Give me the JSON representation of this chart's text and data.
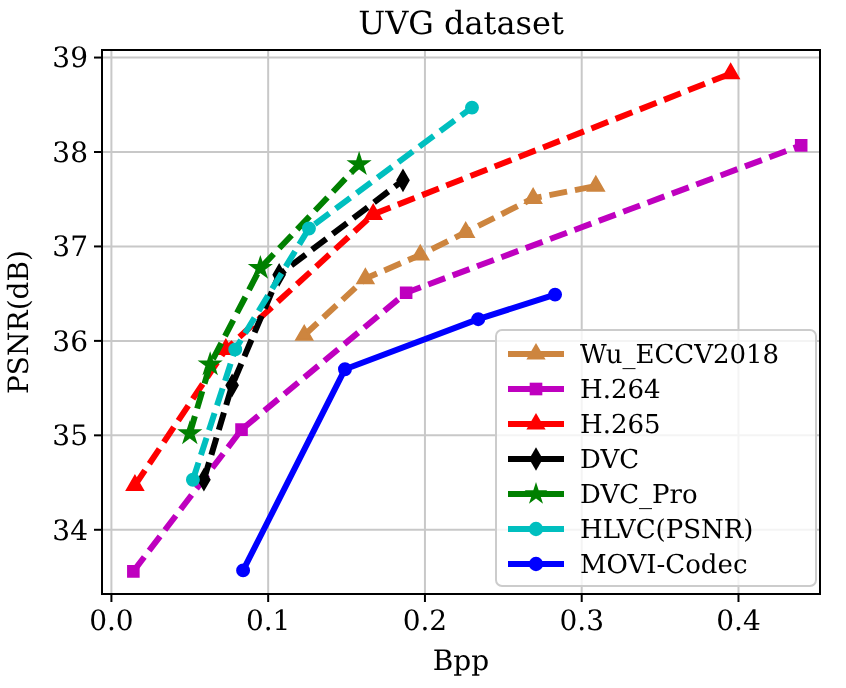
{
  "chart_data": {
    "type": "line",
    "title": "UVG dataset",
    "xlabel": "Bpp",
    "ylabel": "PSNR(dB)",
    "xlim": [
      -0.006,
      0.452
    ],
    "ylim": [
      33.32,
      39.08
    ],
    "xticks": [
      {
        "value": 0,
        "label": "0.0"
      },
      {
        "value": 0.1,
        "label": "0.1"
      },
      {
        "value": 0.2,
        "label": "0.2"
      },
      {
        "value": 0.3,
        "label": "0.3"
      },
      {
        "value": 0.4,
        "label": "0.4"
      }
    ],
    "yticks": [
      34,
      35,
      36,
      37,
      38,
      39
    ],
    "grid": true,
    "legend": "bottom right",
    "series": [
      {
        "name": "Wu_ECCV2018",
        "color": "#cd853f",
        "marker": "triangle",
        "line_style": "dashed",
        "x": [
          0.123,
          0.162,
          0.197,
          0.226,
          0.269,
          0.309
        ],
        "values": [
          36.06,
          36.66,
          36.91,
          37.15,
          37.51,
          37.64
        ]
      },
      {
        "name": "H.264",
        "color": "#bf00bf",
        "marker": "square",
        "line_style": "dashed",
        "x": [
          0.014,
          0.083,
          0.188,
          0.44
        ],
        "values": [
          33.56,
          35.06,
          36.51,
          38.07
        ]
      },
      {
        "name": "H.265",
        "color": "#ff0000",
        "marker": "triangle",
        "line_style": "dashed",
        "x": [
          0.015,
          0.073,
          0.167,
          0.395
        ],
        "values": [
          34.47,
          35.91,
          37.34,
          38.83
        ]
      },
      {
        "name": "DVC",
        "color": "#000000",
        "marker": "diamond",
        "line_style": "dashed",
        "x": [
          0.059,
          0.077,
          0.107,
          0.186
        ],
        "values": [
          34.53,
          35.53,
          36.7,
          37.7
        ]
      },
      {
        "name": "DVC_Pro",
        "color": "#008000",
        "marker": "star",
        "line_style": "dashed",
        "x": [
          0.05,
          0.063,
          0.095,
          0.158
        ],
        "values": [
          35.02,
          35.75,
          36.77,
          37.87
        ]
      },
      {
        "name": "HLVC(PSNR)",
        "color": "#00bfbf",
        "marker": "circle",
        "line_style": "dashed",
        "x": [
          0.052,
          0.079,
          0.126,
          0.23
        ],
        "values": [
          34.53,
          35.91,
          37.19,
          38.47
        ]
      },
      {
        "name": "MOVI-Codec",
        "color": "#0000ff",
        "marker": "circle",
        "line_style": "solid",
        "x": [
          0.084,
          0.149,
          0.234,
          0.283
        ],
        "values": [
          33.57,
          35.7,
          36.23,
          36.49
        ]
      }
    ]
  }
}
